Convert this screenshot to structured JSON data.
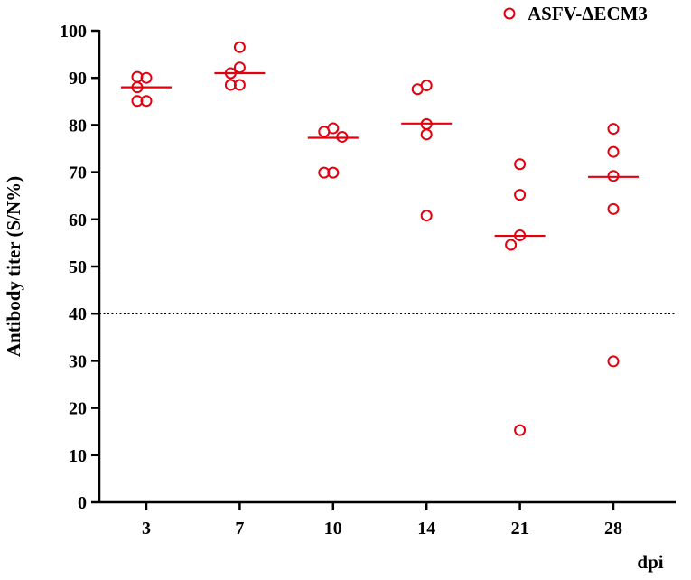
{
  "chart_data": {
    "type": "scatter",
    "xlabel": "dpi",
    "ylabel": "Antibody titer (S/N%)",
    "ylim": [
      0,
      100
    ],
    "yticks": [
      0,
      10,
      20,
      30,
      40,
      50,
      60,
      70,
      80,
      90,
      100
    ],
    "categories": [
      "3",
      "7",
      "10",
      "14",
      "21",
      "28"
    ],
    "threshold": 40,
    "grid": false,
    "legend_position": "top-right",
    "series": [
      {
        "name": "ASFV-ΔECM3",
        "color": "#e3000f",
        "marker": "open-circle",
        "points": [
          [
            90.0,
            90.2,
            88.0,
            85.1,
            85.1
          ],
          [
            96.5,
            92.2,
            91.0,
            88.5,
            88.5
          ],
          [
            79.3,
            78.6,
            77.5,
            69.9,
            69.9
          ],
          [
            88.4,
            87.6,
            80.2,
            78.0,
            60.8
          ],
          [
            71.7,
            65.2,
            56.6,
            54.6,
            15.3
          ],
          [
            79.2,
            74.3,
            69.2,
            62.2,
            29.9
          ]
        ],
        "means": [
          88.0,
          91.0,
          77.3,
          80.3,
          56.5,
          69.0
        ]
      }
    ]
  }
}
